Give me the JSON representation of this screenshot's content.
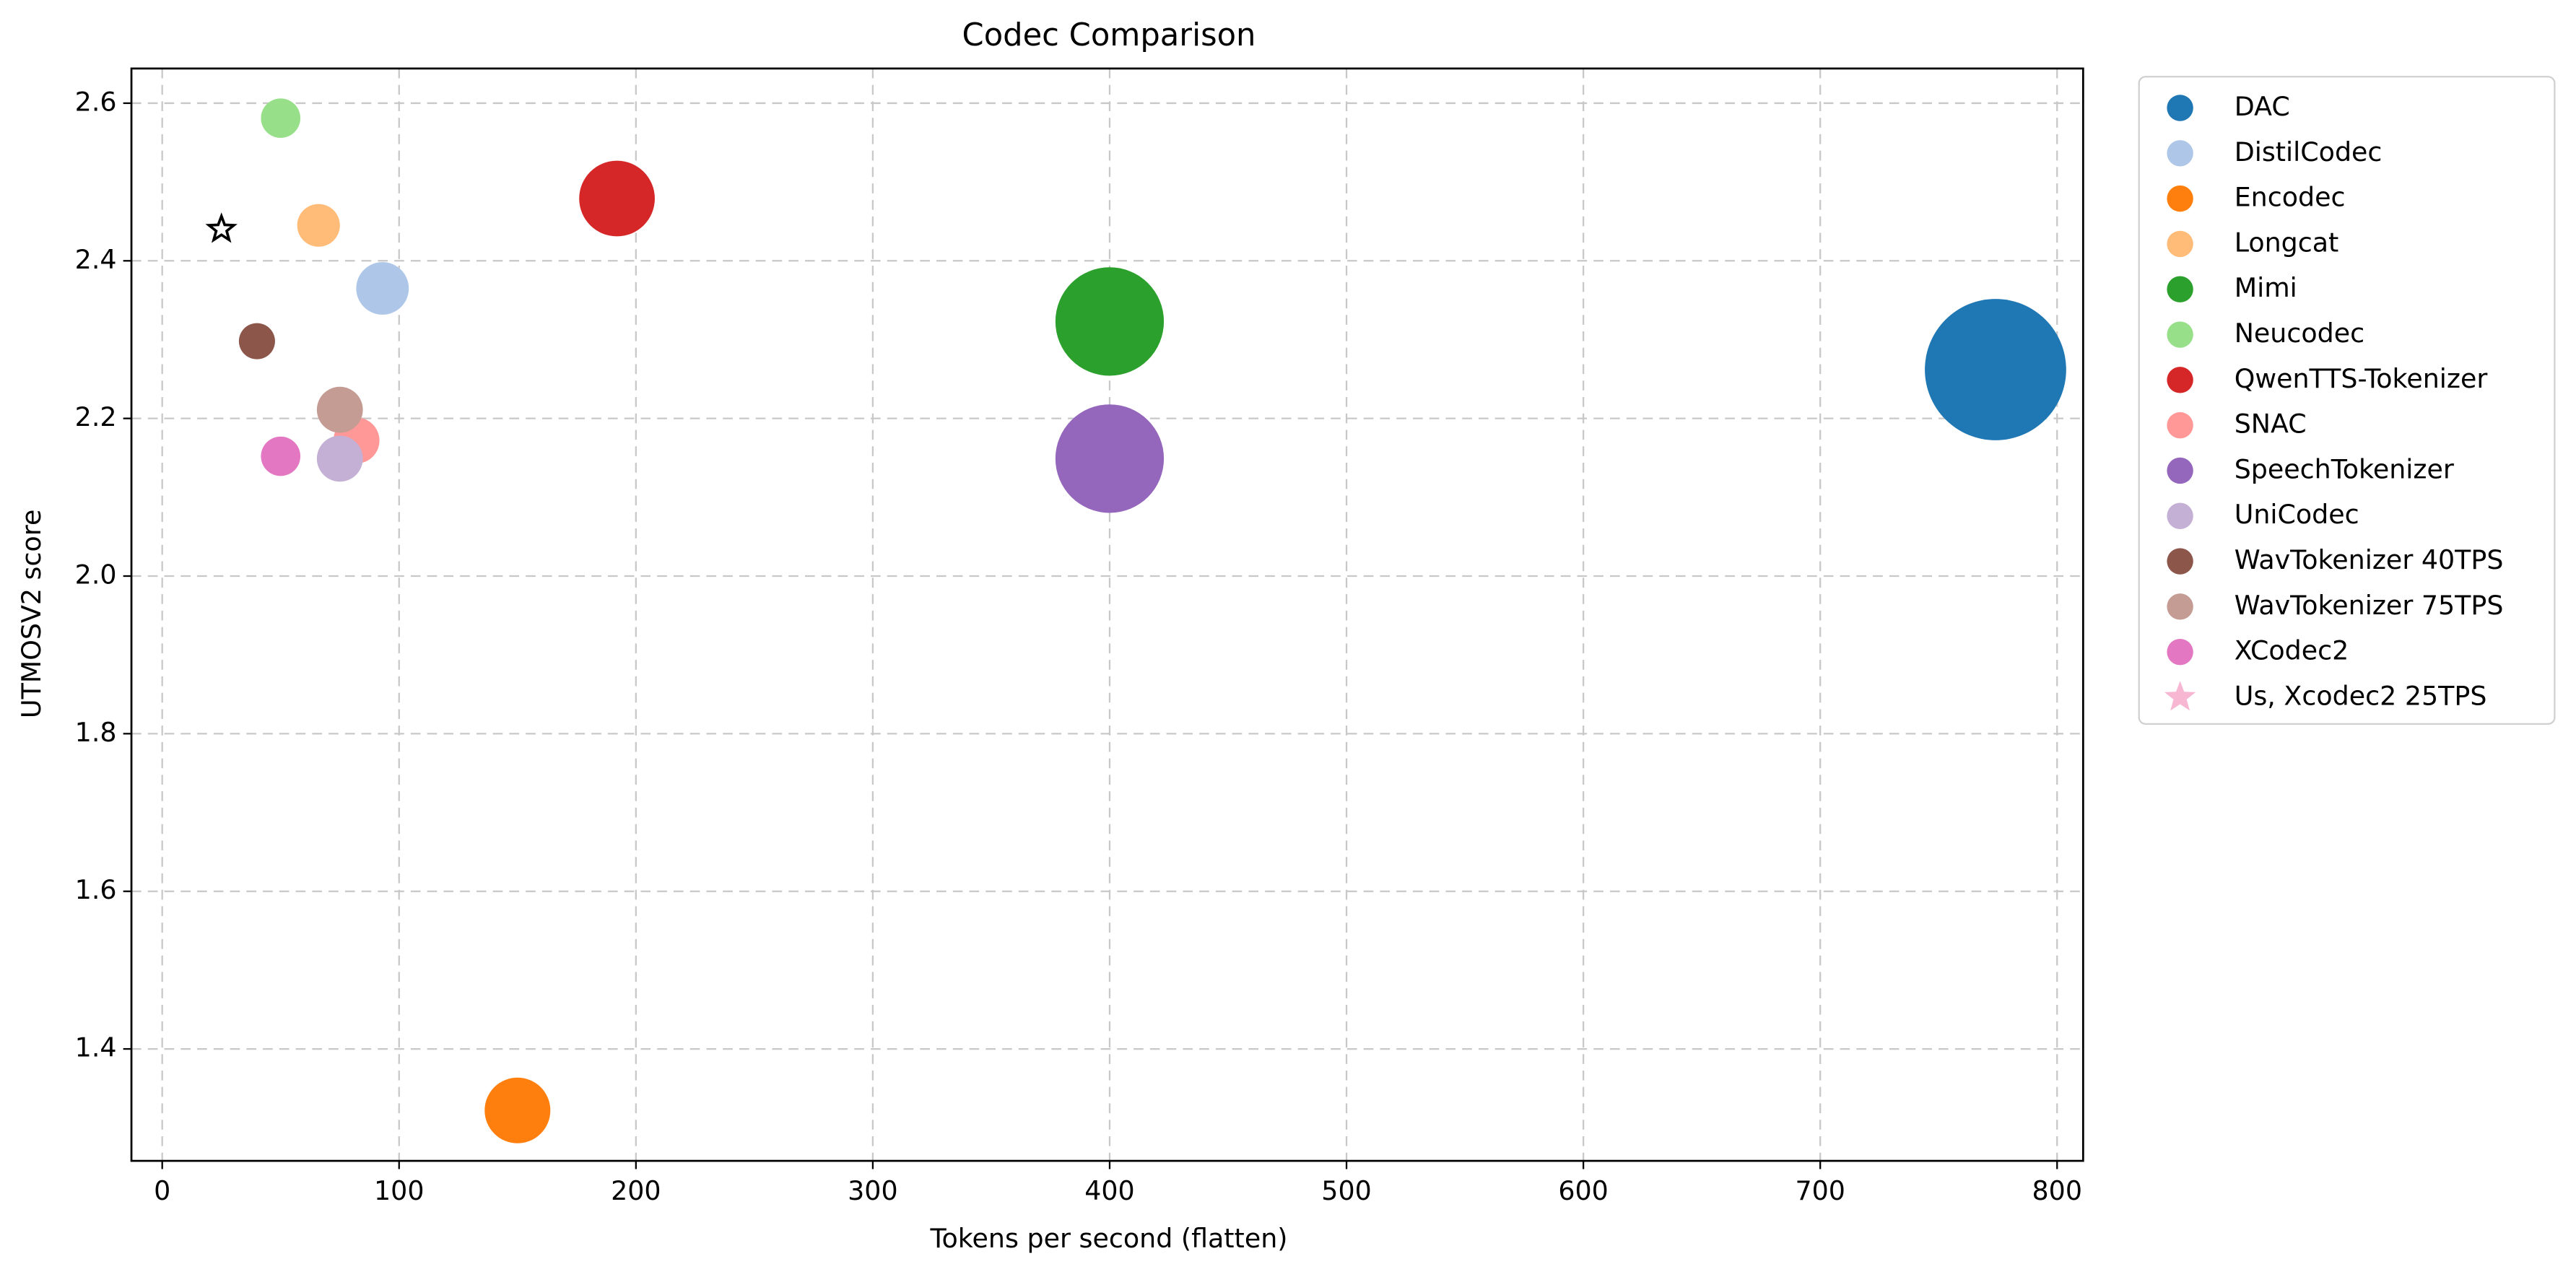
{
  "chart_data": {
    "type": "scatter",
    "title": "Codec Comparison",
    "x_label": "Tokens per second (flatten)",
    "y_label": "UTMOSV2 score",
    "xlim": [
      -13,
      811
    ],
    "ylim": [
      1.258,
      2.644
    ],
    "xticks": [
      0,
      100,
      200,
      300,
      400,
      500,
      600,
      700,
      800
    ],
    "yticks": [
      1.4,
      1.6,
      1.8,
      {
        "value": 2,
        "label": "2.0"
      },
      2.2,
      2.4,
      2.6
    ],
    "grid": true,
    "legend": "outside right",
    "series": [
      {
        "name": "DAC",
        "color": "#1f77b4",
        "x": [
          774
        ],
        "values": [
          2.262
        ],
        "sizes": [
          1850
        ]
      },
      {
        "name": "DistilCodec",
        "color": "#aec7e8",
        "x": [
          93
        ],
        "values": [
          2.365
        ],
        "sizes": [
          256
        ]
      },
      {
        "name": "Encodec",
        "color": "#ff7f0e",
        "x": [
          150
        ],
        "values": [
          1.322
        ],
        "sizes": [
          400
        ]
      },
      {
        "name": "Longcat",
        "color": "#ffbb78",
        "x": [
          66
        ],
        "values": [
          2.445
        ],
        "sizes": [
          169
        ]
      },
      {
        "name": "Mimi",
        "color": "#2ca02c",
        "x": [
          400
        ],
        "values": [
          2.323
        ],
        "sizes": [
          1090
        ]
      },
      {
        "name": "Neucodec",
        "color": "#98df8a",
        "x": [
          50
        ],
        "values": [
          2.581
        ],
        "sizes": [
          144
        ]
      },
      {
        "name": "QwenTTS-Tokenizer",
        "color": "#d62728",
        "x": [
          192
        ],
        "values": [
          2.479
        ],
        "sizes": [
          530
        ]
      },
      {
        "name": "SNAC",
        "color": "#ff9896",
        "x": [
          82
        ],
        "values": [
          2.172
        ],
        "sizes": [
          196
        ]
      },
      {
        "name": "SpeechTokenizer",
        "color": "#9467bd",
        "x": [
          400
        ],
        "values": [
          2.149
        ],
        "sizes": [
          1090
        ]
      },
      {
        "name": "UniCodec",
        "color": "#c5b0d5",
        "x": [
          75
        ],
        "values": [
          2.149
        ],
        "sizes": [
          196
        ]
      },
      {
        "name": "WavTokenizer 40TPS",
        "color": "#8c564b",
        "x": [
          40
        ],
        "values": [
          2.298
        ],
        "sizes": [
          121
        ]
      },
      {
        "name": "WavTokenizer 75TPS",
        "color": "#c49c94",
        "x": [
          75
        ],
        "values": [
          2.211
        ],
        "sizes": [
          196
        ]
      },
      {
        "name": "XCodec2",
        "color": "#e377c2",
        "x": [
          50
        ],
        "values": [
          2.152
        ],
        "sizes": [
          144
        ]
      },
      {
        "name": "Us, Xcodec2 25TPS",
        "color": "#f7b6d2",
        "marker": "star",
        "x": [
          25
        ],
        "values": [
          2.44
        ],
        "sizes": [
          64
        ]
      }
    ]
  }
}
